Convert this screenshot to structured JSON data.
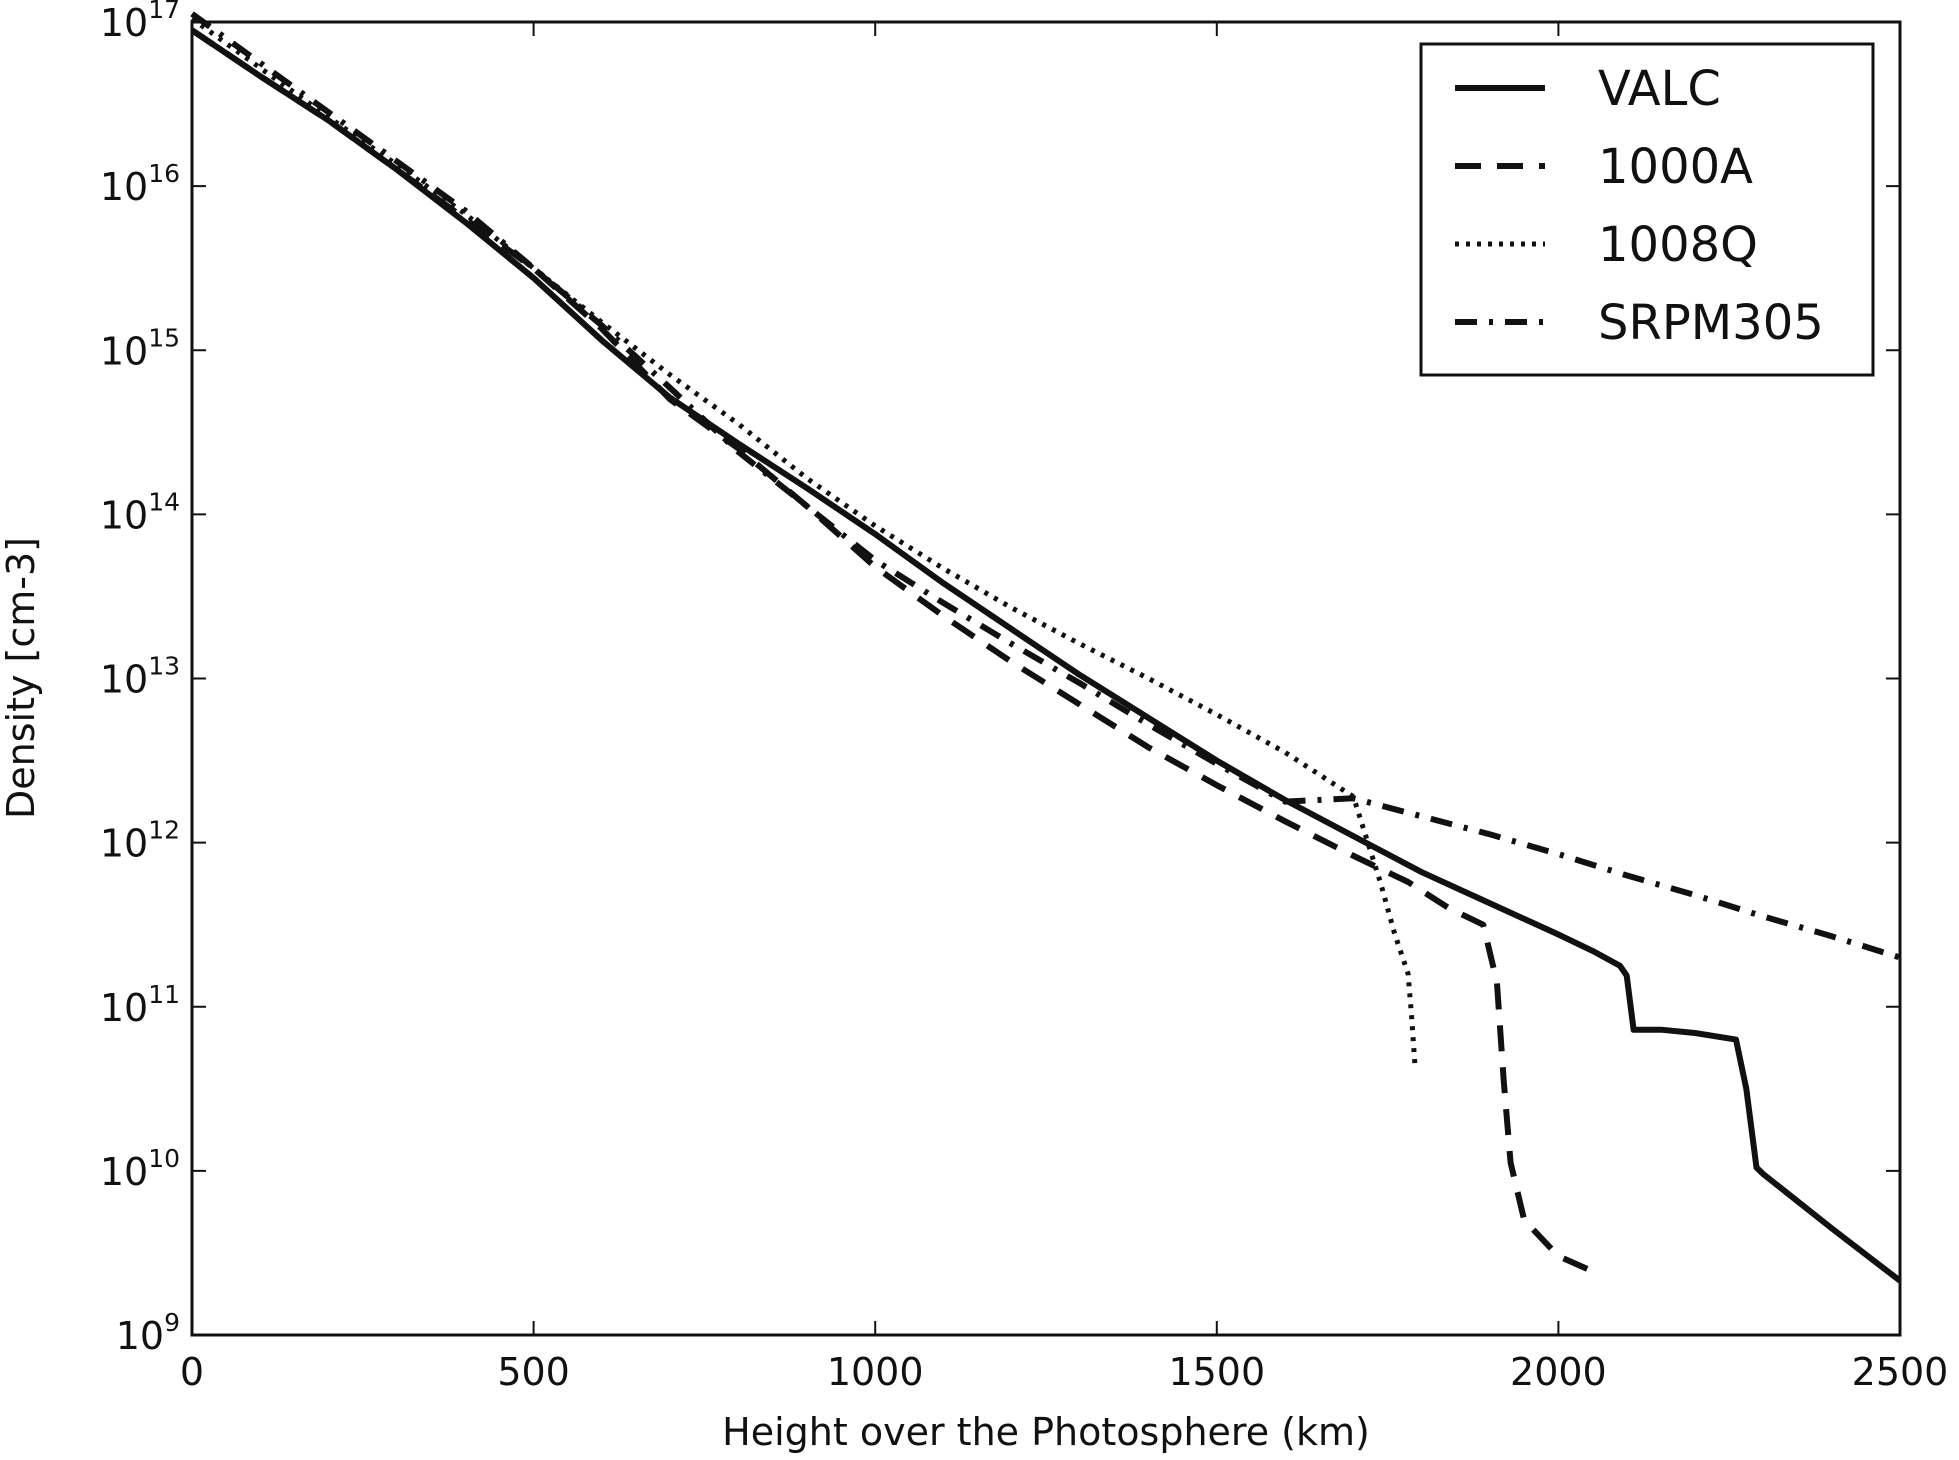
{
  "chart_data": {
    "type": "line",
    "title": "",
    "xlabel": "Height over the Photosphere (km)",
    "ylabel": "Density [cm-3]",
    "xlim": [
      0,
      2500
    ],
    "ylim_log10": [
      9,
      17
    ],
    "y_scale": "log",
    "grid": false,
    "legend_position": "top-right",
    "x_ticks": [
      "0",
      "500",
      "1000",
      "1500",
      "2000",
      "2500"
    ],
    "y_ticks": [
      {
        "base": "10",
        "exp": "9"
      },
      {
        "base": "10",
        "exp": "10"
      },
      {
        "base": "10",
        "exp": "11"
      },
      {
        "base": "10",
        "exp": "12"
      },
      {
        "base": "10",
        "exp": "13"
      },
      {
        "base": "10",
        "exp": "14"
      },
      {
        "base": "10",
        "exp": "15"
      },
      {
        "base": "10",
        "exp": "16"
      },
      {
        "base": "10",
        "exp": "17"
      }
    ],
    "series": [
      {
        "name": "VALC",
        "style": "solid",
        "x": [
          0,
          100,
          200,
          300,
          400,
          500,
          600,
          700,
          800,
          900,
          1000,
          1100,
          1200,
          1300,
          1400,
          1500,
          1600,
          1700,
          1800,
          1900,
          2000,
          2050,
          2090,
          2100,
          2110,
          2150,
          2200,
          2260,
          2275,
          2290,
          2300,
          2400,
          2500
        ],
        "y": [
          16.95,
          16.67,
          16.4,
          16.1,
          15.78,
          15.44,
          15.06,
          14.71,
          14.43,
          14.16,
          13.88,
          13.58,
          13.3,
          13.02,
          12.76,
          12.5,
          12.26,
          12.04,
          11.82,
          11.63,
          11.44,
          11.34,
          11.25,
          11.19,
          10.86,
          10.86,
          10.84,
          10.8,
          10.5,
          10.02,
          9.98,
          9.65,
          9.33
        ]
      },
      {
        "name": "1000A",
        "style": "dashed",
        "x": [
          0,
          100,
          200,
          300,
          400,
          500,
          600,
          700,
          800,
          900,
          1000,
          1100,
          1200,
          1300,
          1400,
          1500,
          1600,
          1700,
          1780,
          1840,
          1890,
          1910,
          1920,
          1930,
          1950,
          2000,
          2060
        ],
        "y": [
          16.95,
          16.67,
          16.4,
          16.1,
          15.8,
          15.5,
          15.13,
          14.7,
          14.4,
          14.05,
          13.68,
          13.38,
          13.1,
          12.84,
          12.58,
          12.35,
          12.13,
          11.92,
          11.76,
          11.6,
          11.5,
          11.15,
          10.55,
          10.05,
          9.7,
          9.48,
          9.37
        ]
      },
      {
        "name": "1008Q",
        "style": "dotted",
        "x": [
          0,
          100,
          200,
          300,
          400,
          500,
          600,
          700,
          800,
          900,
          1000,
          1100,
          1200,
          1300,
          1400,
          1500,
          1600,
          1700,
          1740,
          1760,
          1780,
          1785,
          1790
        ],
        "y": [
          17.02,
          16.72,
          16.42,
          16.13,
          15.83,
          15.5,
          15.17,
          14.85,
          14.55,
          14.22,
          13.93,
          13.67,
          13.43,
          13.21,
          13.0,
          12.78,
          12.55,
          12.28,
          11.75,
          11.45,
          11.2,
          10.95,
          10.65
        ]
      },
      {
        "name": "SRPM305",
        "style": "dash-dot",
        "x": [
          0,
          100,
          200,
          300,
          400,
          500,
          600,
          700,
          800,
          900,
          1000,
          1100,
          1200,
          1300,
          1400,
          1500,
          1600,
          1700,
          1800,
          1900,
          2000,
          2100,
          2200,
          2300,
          2400,
          2500
        ],
        "y": [
          17.05,
          16.75,
          16.45,
          16.15,
          15.85,
          15.5,
          15.15,
          14.77,
          14.38,
          14.05,
          13.72,
          13.46,
          13.21,
          12.97,
          12.72,
          12.48,
          12.25,
          12.27,
          12.16,
          12.05,
          11.93,
          11.8,
          11.68,
          11.55,
          11.43,
          11.3
        ]
      }
    ]
  }
}
